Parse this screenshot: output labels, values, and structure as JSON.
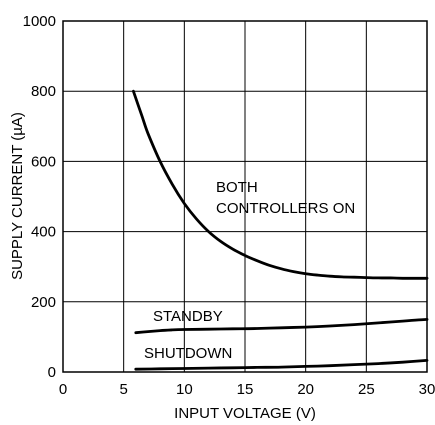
{
  "chart_data": {
    "type": "line",
    "xlabel": "INPUT VOLTAGE (V)",
    "ylabel": "SUPPLY CURRENT (µA)",
    "xlim": [
      0,
      30
    ],
    "ylim": [
      0,
      1000
    ],
    "x_ticks": [
      "0",
      "5",
      "10",
      "15",
      "20",
      "25",
      "30"
    ],
    "y_ticks": [
      "0",
      "200",
      "400",
      "600",
      "800",
      "1000"
    ],
    "grid": true,
    "series": [
      {
        "name": "BOTH CONTROLLERS ON",
        "label_lines": [
          "BOTH",
          "CONTROLLERS ON"
        ],
        "x": [
          5.8,
          6.5,
          7,
          8,
          9,
          10,
          11,
          12,
          13,
          14,
          15,
          16,
          17,
          18,
          19,
          20,
          21,
          22,
          23,
          24,
          25,
          26,
          27,
          28,
          29,
          30
        ],
        "y": [
          800,
          730,
          680,
          600,
          535,
          480,
          436,
          400,
          372,
          350,
          332,
          317,
          304,
          294,
          286,
          280,
          276,
          273,
          271,
          270,
          269,
          268,
          268,
          267,
          267,
          267
        ]
      },
      {
        "name": "STANDBY",
        "label_lines": [
          "STANDBY"
        ],
        "x": [
          6,
          7,
          8,
          9,
          10,
          12,
          14,
          16,
          18,
          20,
          22,
          24,
          26,
          28,
          30
        ],
        "y": [
          112,
          115,
          118,
          120,
          121,
          122,
          123,
          124,
          126,
          128,
          131,
          135,
          140,
          145,
          150
        ]
      },
      {
        "name": "SHUTDOWN",
        "label_lines": [
          "SHUTDOWN"
        ],
        "x": [
          6,
          8,
          10,
          12,
          14,
          16,
          18,
          20,
          22,
          24,
          26,
          28,
          30
        ],
        "y": [
          8,
          9,
          10,
          11,
          12,
          13,
          14,
          16,
          18,
          21,
          24,
          28,
          33
        ]
      }
    ]
  }
}
